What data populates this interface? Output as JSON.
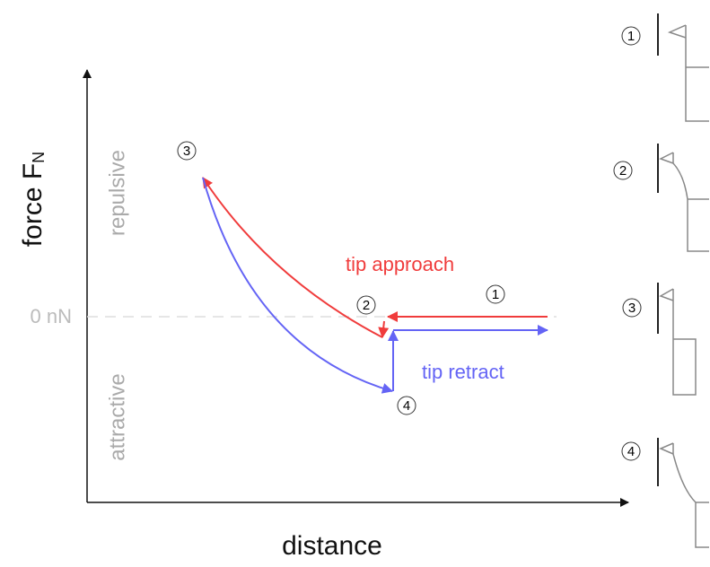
{
  "axes": {
    "y_label": "force F",
    "y_label_sub": "N",
    "x_label": "distance",
    "zero_label": "0 nN"
  },
  "regions": {
    "upper": "repulsive",
    "lower": "attractive"
  },
  "curves": [
    {
      "label": "tip approach",
      "color": "#f03c3c"
    },
    {
      "label": "tip retract",
      "color": "#6464f5"
    }
  ],
  "curve_markers": [
    "1",
    "2",
    "3",
    "4"
  ],
  "panels": [
    {
      "marker": "1"
    },
    {
      "marker": "2"
    },
    {
      "marker": "3"
    },
    {
      "marker": "4"
    }
  ]
}
